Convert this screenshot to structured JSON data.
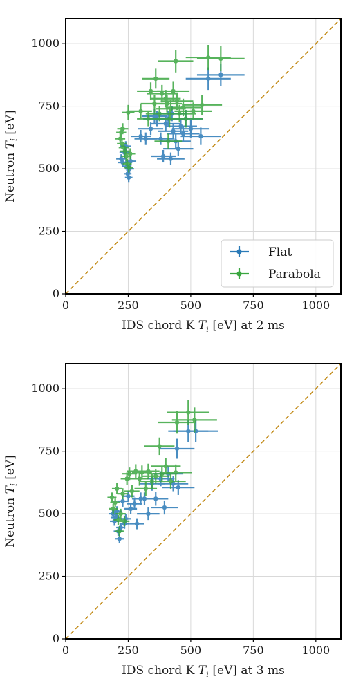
{
  "colors": {
    "flat": "#2a7ab7",
    "parabola": "#3aa640",
    "identity_line": "#c28a16",
    "grid": "#d9d9d9",
    "axes": "#000000"
  },
  "chart_data": [
    {
      "type": "scatter",
      "xlabel": "IDS chord K T_i [eV] at 2 ms",
      "ylabel": "Neutron T_i [eV]",
      "xlim": [
        0,
        1100
      ],
      "ylim": [
        0,
        1100
      ],
      "xticks": [
        0,
        250,
        500,
        750,
        1000
      ],
      "yticks": [
        0,
        250,
        500,
        750,
        1000
      ],
      "grid": true,
      "identity_line": true,
      "legend": {
        "placement": "lower-right",
        "entries": [
          "Flat",
          "Parabola"
        ]
      },
      "series": [
        {
          "name": "Flat",
          "color_key": "flat",
          "points": [
            {
              "x": 222,
              "y": 540,
              "xerr": 20,
              "yerr": 18
            },
            {
              "x": 228,
              "y": 525,
              "xerr": 18,
              "yerr": 18
            },
            {
              "x": 235,
              "y": 565,
              "xerr": 20,
              "yerr": 20
            },
            {
              "x": 240,
              "y": 590,
              "xerr": 22,
              "yerr": 20
            },
            {
              "x": 245,
              "y": 510,
              "xerr": 18,
              "yerr": 18
            },
            {
              "x": 248,
              "y": 480,
              "xerr": 15,
              "yerr": 18
            },
            {
              "x": 252,
              "y": 465,
              "xerr": 15,
              "yerr": 18
            },
            {
              "x": 255,
              "y": 500,
              "xerr": 18,
              "yerr": 20
            },
            {
              "x": 260,
              "y": 530,
              "xerr": 22,
              "yerr": 20
            },
            {
              "x": 300,
              "y": 630,
              "xerr": 40,
              "yerr": 25
            },
            {
              "x": 320,
              "y": 620,
              "xerr": 45,
              "yerr": 25
            },
            {
              "x": 340,
              "y": 660,
              "xerr": 50,
              "yerr": 25
            },
            {
              "x": 355,
              "y": 710,
              "xerr": 50,
              "yerr": 30
            },
            {
              "x": 365,
              "y": 700,
              "xerr": 55,
              "yerr": 30
            },
            {
              "x": 380,
              "y": 620,
              "xerr": 55,
              "yerr": 25
            },
            {
              "x": 390,
              "y": 550,
              "xerr": 50,
              "yerr": 25
            },
            {
              "x": 400,
              "y": 680,
              "xerr": 60,
              "yerr": 30
            },
            {
              "x": 410,
              "y": 700,
              "xerr": 60,
              "yerr": 30
            },
            {
              "x": 420,
              "y": 540,
              "xerr": 55,
              "yerr": 25
            },
            {
              "x": 425,
              "y": 720,
              "xerr": 60,
              "yerr": 30
            },
            {
              "x": 430,
              "y": 650,
              "xerr": 60,
              "yerr": 30
            },
            {
              "x": 440,
              "y": 610,
              "xerr": 60,
              "yerr": 30
            },
            {
              "x": 450,
              "y": 580,
              "xerr": 60,
              "yerr": 28
            },
            {
              "x": 460,
              "y": 670,
              "xerr": 65,
              "yerr": 30
            },
            {
              "x": 470,
              "y": 640,
              "xerr": 65,
              "yerr": 30
            },
            {
              "x": 480,
              "y": 700,
              "xerr": 70,
              "yerr": 35
            },
            {
              "x": 500,
              "y": 660,
              "xerr": 75,
              "yerr": 35
            },
            {
              "x": 540,
              "y": 630,
              "xerr": 80,
              "yerr": 35
            },
            {
              "x": 570,
              "y": 860,
              "xerr": 90,
              "yerr": 45
            },
            {
              "x": 620,
              "y": 875,
              "xerr": 95,
              "yerr": 45
            }
          ]
        },
        {
          "name": "Parabola",
          "color_key": "parabola",
          "points": [
            {
              "x": 218,
              "y": 620,
              "xerr": 20,
              "yerr": 20
            },
            {
              "x": 222,
              "y": 645,
              "xerr": 20,
              "yerr": 20
            },
            {
              "x": 225,
              "y": 600,
              "xerr": 20,
              "yerr": 20
            },
            {
              "x": 228,
              "y": 660,
              "xerr": 22,
              "yerr": 22
            },
            {
              "x": 232,
              "y": 585,
              "xerr": 20,
              "yerr": 20
            },
            {
              "x": 238,
              "y": 570,
              "xerr": 20,
              "yerr": 20
            },
            {
              "x": 242,
              "y": 550,
              "xerr": 20,
              "yerr": 20
            },
            {
              "x": 246,
              "y": 520,
              "xerr": 18,
              "yerr": 20
            },
            {
              "x": 250,
              "y": 725,
              "xerr": 25,
              "yerr": 30
            },
            {
              "x": 252,
              "y": 505,
              "xerr": 18,
              "yerr": 20
            },
            {
              "x": 258,
              "y": 560,
              "xerr": 20,
              "yerr": 22
            },
            {
              "x": 300,
              "y": 730,
              "xerr": 45,
              "yerr": 30
            },
            {
              "x": 330,
              "y": 700,
              "xerr": 45,
              "yerr": 30
            },
            {
              "x": 340,
              "y": 810,
              "xerr": 55,
              "yerr": 35
            },
            {
              "x": 355,
              "y": 760,
              "xerr": 55,
              "yerr": 35
            },
            {
              "x": 360,
              "y": 860,
              "xerr": 55,
              "yerr": 40
            },
            {
              "x": 375,
              "y": 720,
              "xerr": 55,
              "yerr": 30
            },
            {
              "x": 385,
              "y": 800,
              "xerr": 60,
              "yerr": 35
            },
            {
              "x": 400,
              "y": 780,
              "xerr": 60,
              "yerr": 35
            },
            {
              "x": 405,
              "y": 760,
              "xerr": 60,
              "yerr": 35
            },
            {
              "x": 410,
              "y": 610,
              "xerr": 55,
              "yerr": 30
            },
            {
              "x": 415,
              "y": 700,
              "xerr": 60,
              "yerr": 35
            },
            {
              "x": 420,
              "y": 740,
              "xerr": 60,
              "yerr": 35
            },
            {
              "x": 430,
              "y": 810,
              "xerr": 65,
              "yerr": 40
            },
            {
              "x": 440,
              "y": 930,
              "xerr": 70,
              "yerr": 45
            },
            {
              "x": 445,
              "y": 770,
              "xerr": 65,
              "yerr": 35
            },
            {
              "x": 455,
              "y": 720,
              "xerr": 65,
              "yerr": 35
            },
            {
              "x": 470,
              "y": 745,
              "xerr": 70,
              "yerr": 35
            },
            {
              "x": 480,
              "y": 700,
              "xerr": 70,
              "yerr": 35
            },
            {
              "x": 510,
              "y": 730,
              "xerr": 75,
              "yerr": 35
            },
            {
              "x": 545,
              "y": 755,
              "xerr": 80,
              "yerr": 40
            },
            {
              "x": 570,
              "y": 945,
              "xerr": 90,
              "yerr": 50
            },
            {
              "x": 620,
              "y": 940,
              "xerr": 95,
              "yerr": 50
            }
          ]
        }
      ]
    },
    {
      "type": "scatter",
      "xlabel": "IDS chord K T_i [eV] at 3 ms",
      "ylabel": "Neutron T_i [eV]",
      "xlim": [
        0,
        1100
      ],
      "ylim": [
        0,
        1100
      ],
      "xticks": [
        0,
        250,
        500,
        750,
        1000
      ],
      "yticks": [
        0,
        250,
        500,
        750,
        1000
      ],
      "grid": true,
      "identity_line": true,
      "series": [
        {
          "name": "Flat",
          "color_key": "flat",
          "points": [
            {
              "x": 190,
              "y": 500,
              "xerr": 18,
              "yerr": 18
            },
            {
              "x": 195,
              "y": 470,
              "xerr": 18,
              "yerr": 18
            },
            {
              "x": 200,
              "y": 485,
              "xerr": 18,
              "yerr": 18
            },
            {
              "x": 205,
              "y": 510,
              "xerr": 20,
              "yerr": 20
            },
            {
              "x": 210,
              "y": 430,
              "xerr": 18,
              "yerr": 18
            },
            {
              "x": 215,
              "y": 400,
              "xerr": 18,
              "yerr": 18
            },
            {
              "x": 220,
              "y": 445,
              "xerr": 18,
              "yerr": 18
            },
            {
              "x": 228,
              "y": 550,
              "xerr": 22,
              "yerr": 22
            },
            {
              "x": 235,
              "y": 460,
              "xerr": 20,
              "yerr": 20
            },
            {
              "x": 240,
              "y": 480,
              "xerr": 20,
              "yerr": 20
            },
            {
              "x": 250,
              "y": 570,
              "xerr": 25,
              "yerr": 22
            },
            {
              "x": 260,
              "y": 520,
              "xerr": 25,
              "yerr": 22
            },
            {
              "x": 275,
              "y": 540,
              "xerr": 30,
              "yerr": 25
            },
            {
              "x": 285,
              "y": 460,
              "xerr": 30,
              "yerr": 22
            },
            {
              "x": 300,
              "y": 560,
              "xerr": 35,
              "yerr": 25
            },
            {
              "x": 315,
              "y": 560,
              "xerr": 40,
              "yerr": 25
            },
            {
              "x": 330,
              "y": 500,
              "xerr": 45,
              "yerr": 25
            },
            {
              "x": 345,
              "y": 620,
              "xerr": 50,
              "yerr": 28
            },
            {
              "x": 360,
              "y": 560,
              "xerr": 50,
              "yerr": 28
            },
            {
              "x": 380,
              "y": 640,
              "xerr": 55,
              "yerr": 30
            },
            {
              "x": 395,
              "y": 525,
              "xerr": 55,
              "yerr": 28
            },
            {
              "x": 410,
              "y": 660,
              "xerr": 60,
              "yerr": 30
            },
            {
              "x": 430,
              "y": 620,
              "xerr": 60,
              "yerr": 30
            },
            {
              "x": 445,
              "y": 760,
              "xerr": 70,
              "yerr": 40
            },
            {
              "x": 450,
              "y": 605,
              "xerr": 65,
              "yerr": 30
            },
            {
              "x": 490,
              "y": 830,
              "xerr": 80,
              "yerr": 45
            },
            {
              "x": 520,
              "y": 830,
              "xerr": 90,
              "yerr": 45
            }
          ]
        },
        {
          "name": "Parabola",
          "color_key": "parabola",
          "points": [
            {
              "x": 185,
              "y": 565,
              "xerr": 18,
              "yerr": 20
            },
            {
              "x": 190,
              "y": 520,
              "xerr": 18,
              "yerr": 20
            },
            {
              "x": 198,
              "y": 545,
              "xerr": 20,
              "yerr": 20
            },
            {
              "x": 205,
              "y": 600,
              "xerr": 20,
              "yerr": 22
            },
            {
              "x": 210,
              "y": 475,
              "xerr": 18,
              "yerr": 20
            },
            {
              "x": 215,
              "y": 430,
              "xerr": 18,
              "yerr": 20
            },
            {
              "x": 220,
              "y": 500,
              "xerr": 20,
              "yerr": 20
            },
            {
              "x": 228,
              "y": 580,
              "xerr": 22,
              "yerr": 22
            },
            {
              "x": 235,
              "y": 470,
              "xerr": 20,
              "yerr": 20
            },
            {
              "x": 245,
              "y": 640,
              "xerr": 25,
              "yerr": 25
            },
            {
              "x": 255,
              "y": 660,
              "xerr": 30,
              "yerr": 25
            },
            {
              "x": 265,
              "y": 590,
              "xerr": 30,
              "yerr": 25
            },
            {
              "x": 280,
              "y": 670,
              "xerr": 35,
              "yerr": 28
            },
            {
              "x": 295,
              "y": 640,
              "xerr": 40,
              "yerr": 28
            },
            {
              "x": 305,
              "y": 665,
              "xerr": 40,
              "yerr": 28
            },
            {
              "x": 320,
              "y": 600,
              "xerr": 45,
              "yerr": 28
            },
            {
              "x": 330,
              "y": 670,
              "xerr": 45,
              "yerr": 30
            },
            {
              "x": 345,
              "y": 630,
              "xerr": 50,
              "yerr": 30
            },
            {
              "x": 360,
              "y": 650,
              "xerr": 55,
              "yerr": 30
            },
            {
              "x": 375,
              "y": 770,
              "xerr": 60,
              "yerr": 35
            },
            {
              "x": 385,
              "y": 660,
              "xerr": 60,
              "yerr": 30
            },
            {
              "x": 400,
              "y": 690,
              "xerr": 60,
              "yerr": 32
            },
            {
              "x": 420,
              "y": 630,
              "xerr": 60,
              "yerr": 30
            },
            {
              "x": 440,
              "y": 665,
              "xerr": 65,
              "yerr": 32
            },
            {
              "x": 445,
              "y": 865,
              "xerr": 75,
              "yerr": 45
            },
            {
              "x": 490,
              "y": 905,
              "xerr": 85,
              "yerr": 50
            },
            {
              "x": 515,
              "y": 875,
              "xerr": 90,
              "yerr": 50
            }
          ]
        }
      ]
    }
  ]
}
